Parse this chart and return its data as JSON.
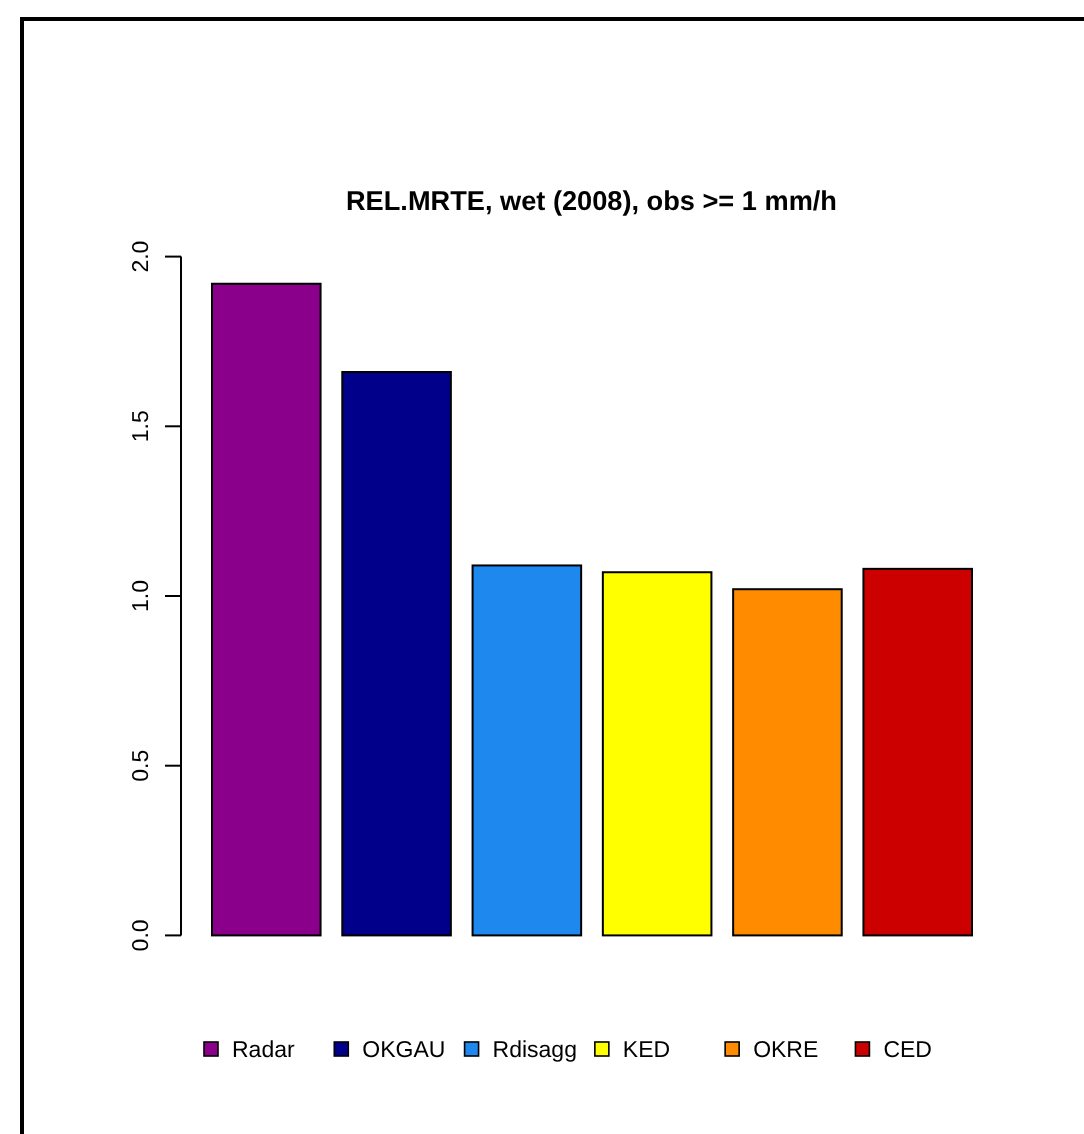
{
  "chart_data": {
    "type": "bar",
    "title": "REL.MRTE, wet (2008), obs >= 1 mm/h",
    "categories": [
      null
    ],
    "series": [
      {
        "name": "Radar",
        "color": "#8b008b",
        "values": [
          1.92
        ]
      },
      {
        "name": "OKGAU",
        "color": "#00008b",
        "values": [
          1.66
        ]
      },
      {
        "name": "Rdisagg",
        "color": "#1e88ee",
        "values": [
          1.09
        ]
      },
      {
        "name": "KED",
        "color": "#ffff00",
        "values": [
          1.07
        ]
      },
      {
        "name": "OKRE",
        "color": "#ff8c00",
        "values": [
          1.02
        ]
      },
      {
        "name": "CED",
        "color": "#cd0000",
        "values": [
          1.08
        ]
      }
    ],
    "ylim": [
      0,
      2
    ],
    "yticks": [
      {
        "value": 0,
        "label": "0.0"
      },
      {
        "value": 0.5,
        "label": "0.5"
      },
      {
        "value": 1,
        "label": "1.0"
      },
      {
        "value": 1.5,
        "label": "1.5"
      },
      {
        "value": 2,
        "label": "2.0"
      }
    ],
    "tick_labels": "y",
    "legend": "bottom"
  }
}
